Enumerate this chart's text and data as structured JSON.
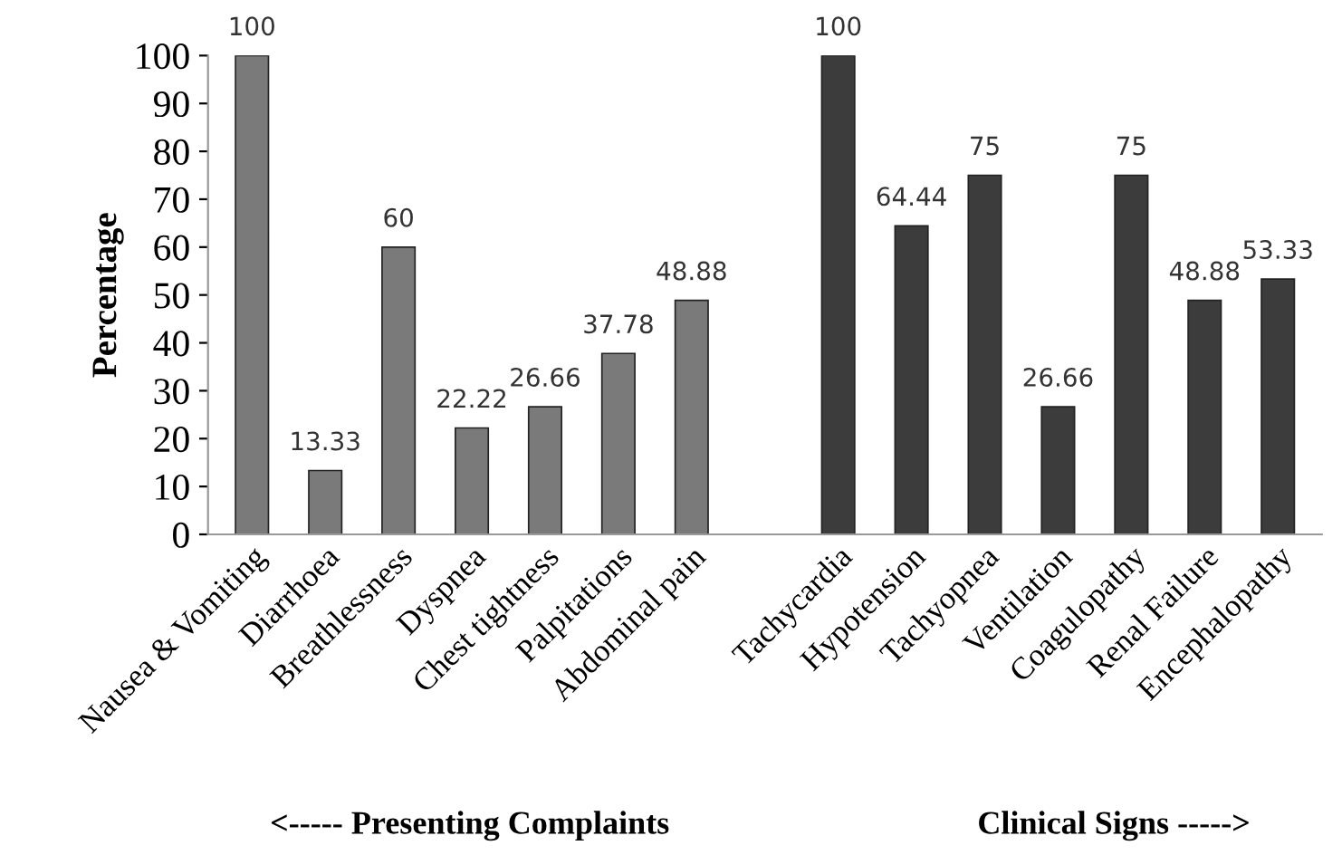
{
  "chart_data": {
    "type": "bar",
    "ylabel": "Percentage",
    "categories": [
      "Nausea & Vomiting",
      "Diarrhoea",
      "Breathlessness",
      "Dyspnea",
      "Chest tightness",
      "Palpitations",
      "Abdominal pain",
      null,
      "Tachycardia",
      "Hypotension",
      "Tachyopnea",
      "Ventilation",
      "Coagulopathy",
      "Renal Failure",
      "Encephalopathy"
    ],
    "values": [
      100,
      13.33,
      60,
      22.22,
      26.66,
      37.78,
      48.88,
      null,
      100,
      64.44,
      75,
      26.66,
      75,
      48.88,
      53.33
    ],
    "colors": [
      "#7a7a7a",
      "#7a7a7a",
      "#7a7a7a",
      "#7a7a7a",
      "#7a7a7a",
      "#7a7a7a",
      "#7a7a7a",
      "#ffffff",
      "#3c3c3c",
      "#3c3c3c",
      "#3c3c3c",
      "#3c3c3c",
      "#3c3c3c",
      "#3c3c3c",
      "#3c3c3c"
    ],
    "ylim": [
      0,
      100
    ],
    "yticks": [
      0,
      10,
      20,
      30,
      40,
      50,
      60,
      70,
      80,
      90,
      100
    ],
    "grid": false,
    "data_labels": true,
    "annotations": [
      "<----- Presenting Complaints",
      "Clinical Signs ----->"
    ]
  }
}
